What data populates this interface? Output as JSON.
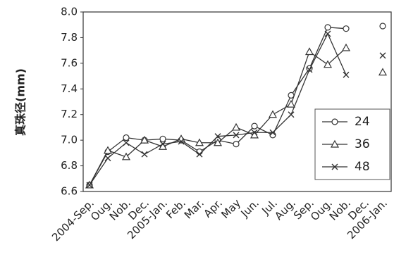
{
  "chart_data": {
    "type": "line",
    "y_label": "真珠径(mm)",
    "categories": [
      "2004-Sep.",
      "Oug.",
      "Nob.",
      "Dec.",
      "2005-Jan.",
      "Feb.",
      "Mar.",
      "Apr.",
      "May",
      "Jun.",
      "Jul.",
      "Aug.",
      "Sep.",
      "Oug.",
      "Nob.",
      "Dec.",
      "2006-Jan."
    ],
    "series": [
      {
        "name": "24",
        "color": "#333333",
        "marker": "circle",
        "values": [
          6.65,
          6.91,
          7.02,
          7.0,
          7.01,
          7.0,
          6.91,
          7.0,
          6.97,
          7.11,
          7.04,
          7.35,
          7.56,
          7.88,
          7.87,
          null,
          7.89
        ]
      },
      {
        "name": "36",
        "color": "#333333",
        "marker": "triangle",
        "values": [
          6.65,
          6.92,
          6.87,
          7.0,
          6.95,
          7.01,
          6.98,
          6.98,
          7.1,
          7.04,
          7.2,
          7.28,
          7.69,
          7.59,
          7.72,
          null,
          7.53
        ]
      },
      {
        "name": "48",
        "color": "#333333",
        "marker": "cross",
        "values": [
          6.65,
          6.86,
          6.98,
          6.89,
          6.97,
          6.99,
          6.89,
          7.03,
          7.04,
          7.06,
          7.06,
          7.2,
          7.55,
          7.83,
          7.51,
          null,
          7.66
        ]
      }
    ],
    "ylim": [
      6.6,
      8.0
    ],
    "yticks": [
      6.6,
      6.8,
      {
        "value": 7,
        "label": "7.0"
      },
      7.2,
      7.4,
      7.6,
      7.8,
      {
        "value": 8,
        "label": "8.0"
      }
    ],
    "legend": "right"
  }
}
